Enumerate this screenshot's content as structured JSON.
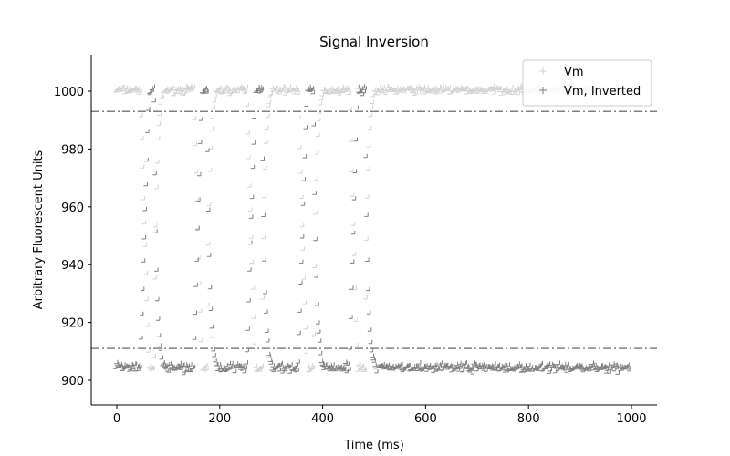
{
  "chart_data": {
    "type": "scatter",
    "title": "Signal Inversion",
    "xlabel": "Time (ms)",
    "ylabel": "Arbitrary Fluorescent Units",
    "xlim": [
      -50,
      1050
    ],
    "ylim": [
      892,
      1012
    ],
    "xticks": [
      0,
      200,
      400,
      600,
      800,
      1000
    ],
    "yticks": [
      900,
      920,
      940,
      960,
      980,
      1000
    ],
    "marker": "+",
    "legend": {
      "position": "top-right"
    },
    "series": [
      {
        "name": "Vm",
        "color": "#d3d3d3",
        "description": "pulses down to ~905 between ~55-75, ~160-180, ~265-285, ~365-385, ~460-480 ms; baseline ~1000",
        "baseline": 1000,
        "low": 904,
        "transitions": [
          {
            "fall": [
              48,
              65
            ],
            "rise": [
              75,
              95
            ]
          },
          {
            "fall": [
              152,
              168
            ],
            "rise": [
              178,
              198
            ]
          },
          {
            "fall": [
              255,
              272
            ],
            "rise": [
              285,
              305
            ]
          },
          {
            "fall": [
              355,
              372
            ],
            "rise": [
              385,
              405
            ]
          },
          {
            "fall": [
              455,
              470
            ],
            "rise": [
              485,
              505
            ]
          }
        ],
        "x_range": [
          0,
          1000
        ]
      },
      {
        "name": "Vm, Inverted",
        "color": "#808080",
        "baseline": 904,
        "high": 1000,
        "x_range": [
          0,
          1000
        ]
      }
    ],
    "hlines": [
      {
        "y": 993,
        "style": "dashdot",
        "color": "#808080"
      },
      {
        "y": 911,
        "style": "dashdot",
        "color": "#808080"
      }
    ]
  }
}
